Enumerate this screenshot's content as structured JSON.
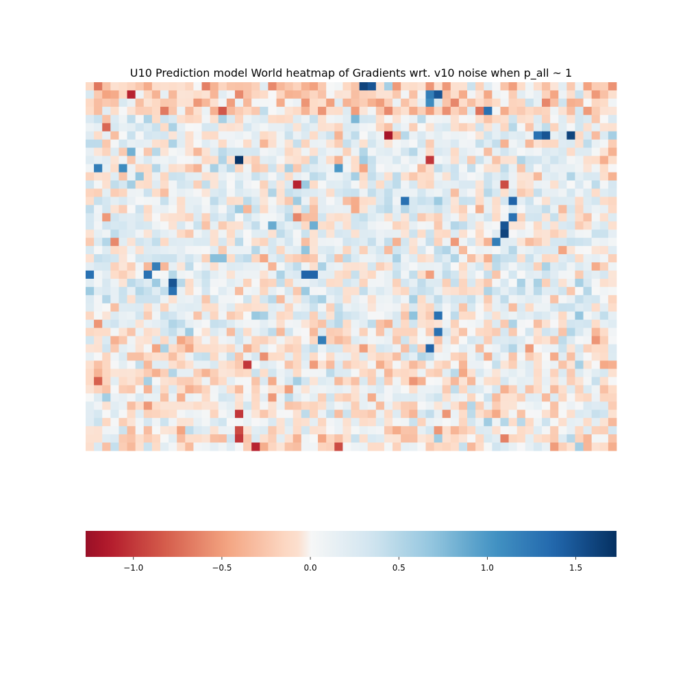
{
  "chart_data": {
    "type": "heatmap",
    "title": "U10 Prediction model World heatmap of Gradients wrt. v10 noise when p_all ~ 1",
    "xlabel": "",
    "ylabel": "",
    "grid": false,
    "axes_visible": false,
    "colormap": "RdBu",
    "colormap_stops": [
      "#67001f",
      "#b2182b",
      "#d6604d",
      "#f4a582",
      "#fddbc7",
      "#f7f7f7",
      "#d1e5f0",
      "#92c5de",
      "#4393c3",
      "#2166ac",
      "#053061"
    ],
    "vmin": -1.27,
    "vmax": 1.73,
    "n_rows": 45,
    "n_cols": 64,
    "seed": 20240611,
    "notable_cells": [
      {
        "row": 0,
        "col": 33,
        "value": 1.6
      },
      {
        "row": 0,
        "col": 34,
        "value": 1.5
      },
      {
        "row": 1,
        "col": 5,
        "value": -1.1
      },
      {
        "row": 1,
        "col": 41,
        "value": 1.2
      },
      {
        "row": 1,
        "col": 42,
        "value": 1.5
      },
      {
        "row": 2,
        "col": 41,
        "value": 1.1
      },
      {
        "row": 3,
        "col": 48,
        "value": 1.3
      },
      {
        "row": 6,
        "col": 36,
        "value": -1.2
      },
      {
        "row": 6,
        "col": 54,
        "value": 1.3
      },
      {
        "row": 6,
        "col": 55,
        "value": 1.5
      },
      {
        "row": 6,
        "col": 58,
        "value": 1.6
      },
      {
        "row": 9,
        "col": 18,
        "value": 1.7
      },
      {
        "row": 9,
        "col": 41,
        "value": -1.0
      },
      {
        "row": 10,
        "col": 1,
        "value": 1.2
      },
      {
        "row": 10,
        "col": 4,
        "value": 1.1
      },
      {
        "row": 10,
        "col": 30,
        "value": 1.0
      },
      {
        "row": 12,
        "col": 25,
        "value": -1.1
      },
      {
        "row": 12,
        "col": 50,
        "value": -0.9
      },
      {
        "row": 14,
        "col": 38,
        "value": 1.3
      },
      {
        "row": 14,
        "col": 51,
        "value": 1.4
      },
      {
        "row": 16,
        "col": 51,
        "value": 1.3
      },
      {
        "row": 17,
        "col": 50,
        "value": 1.5
      },
      {
        "row": 18,
        "col": 50,
        "value": 1.6
      },
      {
        "row": 19,
        "col": 49,
        "value": 1.2
      },
      {
        "row": 22,
        "col": 8,
        "value": 1.2
      },
      {
        "row": 23,
        "col": 0,
        "value": 1.3
      },
      {
        "row": 23,
        "col": 7,
        "value": 1.3
      },
      {
        "row": 23,
        "col": 26,
        "value": 1.4
      },
      {
        "row": 23,
        "col": 27,
        "value": 1.4
      },
      {
        "row": 24,
        "col": 10,
        "value": 1.5
      },
      {
        "row": 25,
        "col": 10,
        "value": 1.3
      },
      {
        "row": 28,
        "col": 42,
        "value": 1.3
      },
      {
        "row": 30,
        "col": 42,
        "value": 1.3
      },
      {
        "row": 31,
        "col": 28,
        "value": 1.2
      },
      {
        "row": 32,
        "col": 41,
        "value": 1.4
      },
      {
        "row": 34,
        "col": 19,
        "value": -1.0
      },
      {
        "row": 36,
        "col": 1,
        "value": -0.8
      },
      {
        "row": 40,
        "col": 18,
        "value": -1.0
      },
      {
        "row": 42,
        "col": 18,
        "value": -0.9
      },
      {
        "row": 43,
        "col": 18,
        "value": -1.0
      },
      {
        "row": 44,
        "col": 20,
        "value": -1.1
      },
      {
        "row": 44,
        "col": 30,
        "value": -0.9
      }
    ],
    "colorbar": {
      "orientation": "horizontal",
      "ticks": [
        -1.0,
        -0.5,
        0.0,
        0.5,
        1.0,
        1.5
      ],
      "tick_labels": [
        "−1.0",
        "−0.5",
        "0.0",
        "0.5",
        "1.0",
        "1.5"
      ]
    }
  }
}
